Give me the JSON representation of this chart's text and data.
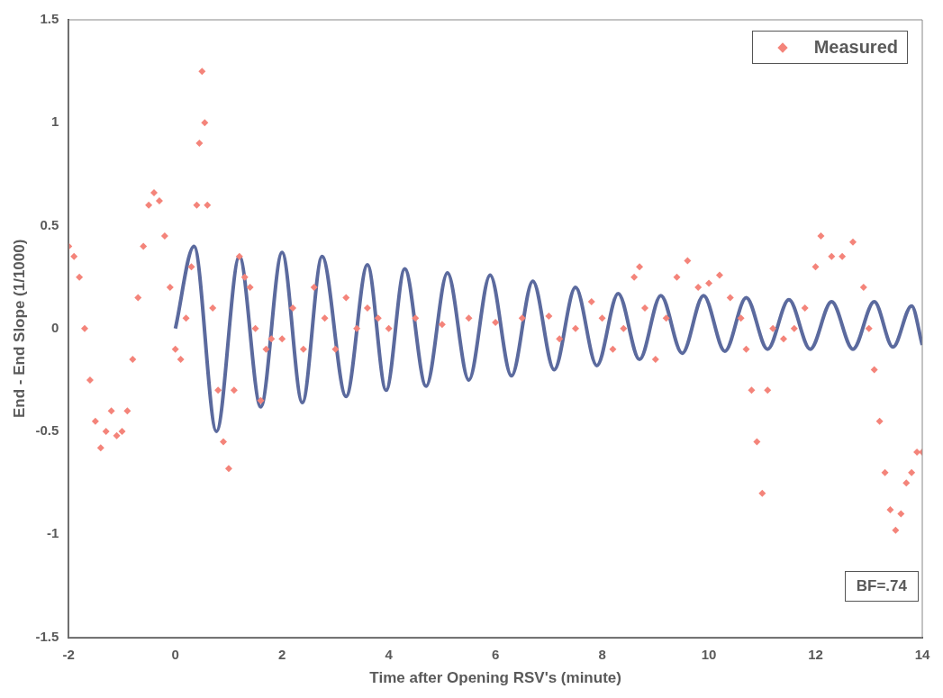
{
  "chart_data": {
    "type": "scatter",
    "xlabel": "Time after Opening RSV's (minute)",
    "ylabel": "End - End Slope (1/1000)",
    "xlim": [
      -2,
      14
    ],
    "xticks": [
      -2,
      0,
      2,
      4,
      6,
      8,
      10,
      12,
      14
    ],
    "ylim": [
      -1.5,
      1.5
    ],
    "yticks": [
      -1.5,
      -1,
      -0.5,
      0,
      0.5,
      1,
      1.5
    ],
    "grid": false,
    "legend": "top right",
    "annotations": [
      "BF=.74"
    ],
    "series": [
      {
        "name": "Measured",
        "type": "scatter",
        "marker": "diamond",
        "color": "#f4847a",
        "x": [
          -2,
          -1.9,
          -1.8,
          -1.7,
          -1.6,
          -1.5,
          -1.4,
          -1.3,
          -1.2,
          -1.1,
          -1,
          -0.9,
          -0.8,
          -0.7,
          -0.6,
          -0.5,
          -0.4,
          -0.3,
          -0.2,
          -0.1,
          0,
          0.1,
          0.2,
          0.3,
          0.4,
          0.45,
          0.5,
          0.55,
          0.6,
          0.7,
          0.8,
          0.9,
          1,
          1.1,
          1.2,
          1.3,
          1.4,
          1.5,
          1.6,
          1.7,
          1.8,
          2,
          2.2,
          2.4,
          2.6,
          2.8,
          3,
          3.2,
          3.4,
          3.6,
          3.8,
          4,
          4.5,
          5,
          5.5,
          6,
          6.5,
          7,
          7.2,
          7.5,
          7.8,
          8,
          8.2,
          8.4,
          8.6,
          8.7,
          8.8,
          9,
          9.2,
          9.4,
          9.6,
          9.8,
          10,
          10.2,
          10.4,
          10.6,
          10.7,
          10.8,
          10.9,
          11,
          11.1,
          11.2,
          11.4,
          11.6,
          11.8,
          12,
          12.1,
          12.3,
          12.5,
          12.7,
          12.9,
          13,
          13.1,
          13.2,
          13.3,
          13.4,
          13.5,
          13.6,
          13.7,
          13.8,
          13.9,
          14
        ],
        "values": [
          0.4,
          0.35,
          0.25,
          0,
          -0.25,
          -0.45,
          -0.58,
          -0.5,
          -0.4,
          -0.52,
          -0.5,
          -0.4,
          -0.15,
          0.15,
          0.4,
          0.6,
          0.66,
          0.62,
          0.45,
          0.2,
          -0.1,
          -0.15,
          0.05,
          0.3,
          0.6,
          0.9,
          1.25,
          1,
          0.6,
          0.1,
          -0.3,
          -0.55,
          -0.68,
          -0.3,
          0.35,
          0.25,
          0.2,
          0,
          -0.35,
          -0.1,
          -0.05,
          -0.05,
          0.1,
          -0.1,
          0.2,
          0.05,
          -0.1,
          0.15,
          0,
          0.1,
          0.05,
          0,
          0.05,
          0.02,
          0.05,
          0.03,
          0.05,
          0.06,
          -0.05,
          0,
          0.13,
          0.05,
          -0.1,
          0,
          0.25,
          0.3,
          0.1,
          -0.15,
          0.05,
          0.25,
          0.33,
          0.2,
          0.22,
          0.26,
          0.15,
          0.05,
          -0.1,
          -0.3,
          -0.55,
          -0.8,
          -0.3,
          0,
          -0.05,
          0,
          0.1,
          0.3,
          0.45,
          0.35,
          0.35,
          0.42,
          0.2,
          0,
          -0.2,
          -0.45,
          -0.7,
          -0.88,
          -0.98,
          -0.9,
          -0.75,
          -0.7,
          -0.6,
          -0.6
        ]
      },
      {
        "type": "line",
        "marker": "none",
        "line_style": "solid",
        "color": "#5b6a9e",
        "x": [
          0,
          0.35,
          0.77,
          1.2,
          1.6,
          2,
          2.38,
          2.75,
          3.2,
          3.6,
          3.95,
          4.3,
          4.7,
          5.1,
          5.5,
          5.9,
          6.3,
          6.7,
          7.1,
          7.5,
          7.9,
          8.3,
          8.7,
          9.1,
          9.5,
          9.9,
          10.3,
          10.7,
          11.1,
          11.5,
          11.9,
          12.3,
          12.7,
          13.1,
          13.45,
          13.8,
          14
        ],
        "values": [
          0,
          0.4,
          -0.5,
          0.35,
          -0.38,
          0.37,
          -0.36,
          0.35,
          -0.33,
          0.31,
          -0.3,
          0.29,
          -0.28,
          0.27,
          -0.25,
          0.26,
          -0.23,
          0.23,
          -0.2,
          0.2,
          -0.18,
          0.17,
          -0.15,
          0.16,
          -0.12,
          0.16,
          -0.11,
          0.15,
          -0.1,
          0.14,
          -0.1,
          0.13,
          -0.1,
          0.13,
          -0.09,
          0.11,
          -0.08
        ]
      }
    ]
  }
}
